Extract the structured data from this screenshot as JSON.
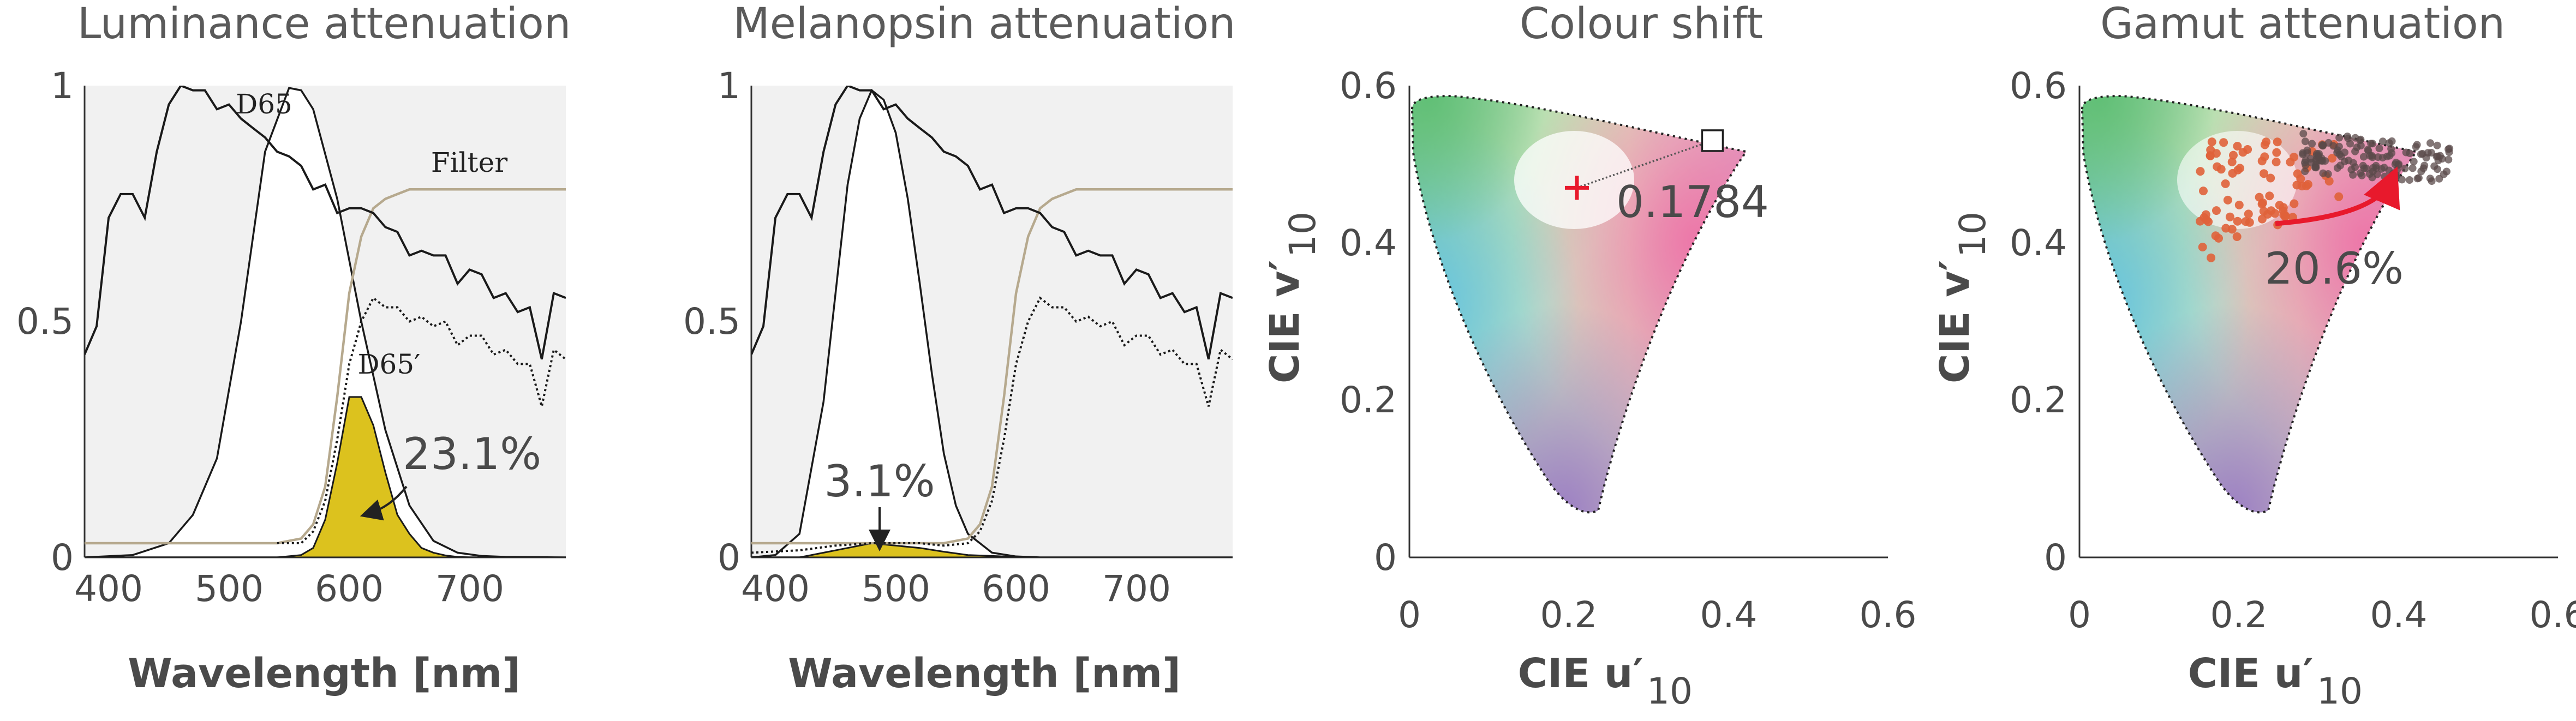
{
  "colors": {
    "filter": "#b6a98e",
    "fill": "#dcc21e",
    "arrow_red": "#e8192c",
    "marker_red": "#e8192c",
    "dots": "#e0623a",
    "dots_dark": "#5a4a4a"
  },
  "chart_data": [
    {
      "type": "line",
      "title": "Luminance attenuation",
      "xlabel": "Wavelength [nm]",
      "xlim": [
        380,
        780
      ],
      "ylim": [
        0,
        1
      ],
      "xticks": [
        "400",
        "500",
        "600",
        "700"
      ],
      "yticks": [
        "0",
        "0.5",
        "1"
      ],
      "series": [
        {
          "name": "D65",
          "style": "solid",
          "x": [
            380,
            390,
            400,
            410,
            420,
            430,
            440,
            450,
            460,
            470,
            480,
            490,
            500,
            510,
            520,
            530,
            540,
            550,
            560,
            570,
            580,
            590,
            600,
            610,
            620,
            630,
            640,
            650,
            660,
            670,
            680,
            690,
            700,
            710,
            720,
            730,
            740,
            750,
            760,
            770,
            780
          ],
          "values": [
            0.43,
            0.49,
            0.72,
            0.77,
            0.77,
            0.72,
            0.86,
            0.96,
            1.0,
            0.99,
            0.99,
            0.95,
            0.96,
            0.93,
            0.91,
            0.89,
            0.86,
            0.85,
            0.83,
            0.78,
            0.79,
            0.73,
            0.74,
            0.74,
            0.73,
            0.7,
            0.69,
            0.64,
            0.65,
            0.64,
            0.64,
            0.58,
            0.61,
            0.6,
            0.55,
            0.56,
            0.52,
            0.53,
            0.42,
            0.56,
            0.55
          ]
        },
        {
          "name": "",
          "style": "luminosity",
          "x": [
            380,
            420,
            450,
            470,
            490,
            510,
            530,
            550,
            560,
            570,
            590,
            610,
            630,
            650,
            670,
            690,
            710,
            730,
            780
          ],
          "values": [
            0.0,
            0.005,
            0.03,
            0.09,
            0.21,
            0.5,
            0.86,
            0.995,
            0.99,
            0.95,
            0.76,
            0.5,
            0.27,
            0.11,
            0.035,
            0.01,
            0.003,
            0.001,
            0.0
          ]
        },
        {
          "name": "Filter",
          "style": "filter",
          "x": [
            380,
            500,
            540,
            560,
            570,
            580,
            590,
            600,
            610,
            620,
            630,
            640,
            650,
            660,
            700,
            780
          ],
          "values": [
            0.03,
            0.03,
            0.03,
            0.04,
            0.07,
            0.15,
            0.34,
            0.56,
            0.68,
            0.74,
            0.76,
            0.77,
            0.78,
            0.78,
            0.78,
            0.78
          ]
        },
        {
          "name": "D65′",
          "style": "dotted",
          "x": [
            540,
            560,
            570,
            580,
            590,
            600,
            610,
            620,
            630,
            640,
            650,
            660,
            670,
            680,
            690,
            700,
            710,
            720,
            730,
            740,
            750,
            760,
            770,
            780
          ],
          "values": [
            0.03,
            0.03,
            0.055,
            0.12,
            0.25,
            0.41,
            0.5,
            0.55,
            0.53,
            0.53,
            0.5,
            0.51,
            0.49,
            0.5,
            0.45,
            0.47,
            0.47,
            0.43,
            0.44,
            0.41,
            0.41,
            0.32,
            0.44,
            0.42
          ]
        },
        {
          "name": "",
          "style": "fill",
          "x": [
            540,
            560,
            570,
            580,
            590,
            600,
            610,
            620,
            630,
            640,
            650,
            660,
            670,
            680,
            690,
            700,
            720,
            780
          ],
          "values": [
            0.0,
            0.005,
            0.02,
            0.08,
            0.2,
            0.34,
            0.34,
            0.28,
            0.18,
            0.09,
            0.05,
            0.02,
            0.01,
            0.004,
            0.001,
            0.0,
            0.0,
            0.0
          ]
        }
      ],
      "annotations": [
        {
          "text": "D65",
          "x": 537,
          "y": 0.955
        },
        {
          "text": "Filter",
          "x": 703,
          "y": 0.82
        },
        {
          "text": "D65′",
          "x": 656,
          "y": 0.45
        },
        {
          "text": "23.1%",
          "x": 670,
          "y": 0.21
        }
      ]
    },
    {
      "type": "line",
      "title": "Melanopsin attenuation",
      "xlabel": "Wavelength [nm]",
      "xlim": [
        380,
        780
      ],
      "ylim": [
        0,
        1
      ],
      "xticks": [
        "400",
        "500",
        "600",
        "700"
      ],
      "yticks": [
        "0",
        "0.5",
        "1"
      ],
      "series": [
        {
          "name": "D65",
          "style": "solid",
          "x": [
            380,
            390,
            400,
            410,
            420,
            430,
            440,
            450,
            460,
            470,
            480,
            490,
            500,
            510,
            520,
            530,
            540,
            550,
            560,
            570,
            580,
            590,
            600,
            610,
            620,
            630,
            640,
            650,
            660,
            670,
            680,
            690,
            700,
            710,
            720,
            730,
            740,
            750,
            760,
            770,
            780
          ],
          "values": [
            0.43,
            0.49,
            0.72,
            0.77,
            0.77,
            0.72,
            0.86,
            0.96,
            1.0,
            0.99,
            0.99,
            0.95,
            0.96,
            0.93,
            0.91,
            0.89,
            0.86,
            0.85,
            0.83,
            0.78,
            0.79,
            0.73,
            0.74,
            0.74,
            0.73,
            0.7,
            0.69,
            0.64,
            0.65,
            0.64,
            0.64,
            0.58,
            0.61,
            0.6,
            0.55,
            0.56,
            0.52,
            0.53,
            0.42,
            0.56,
            0.55
          ]
        },
        {
          "name": "",
          "style": "melanopsin",
          "x": [
            380,
            400,
            420,
            440,
            450,
            460,
            470,
            480,
            490,
            500,
            510,
            520,
            530,
            540,
            550,
            560,
            580,
            600,
            620,
            780
          ],
          "values": [
            0.0,
            0.005,
            0.05,
            0.33,
            0.56,
            0.79,
            0.93,
            0.99,
            0.97,
            0.9,
            0.76,
            0.58,
            0.39,
            0.22,
            0.11,
            0.05,
            0.01,
            0.002,
            0.0,
            0.0
          ]
        },
        {
          "name": "",
          "style": "filter",
          "x": [
            380,
            500,
            540,
            560,
            570,
            580,
            590,
            600,
            610,
            620,
            630,
            640,
            650,
            660,
            700,
            780
          ],
          "values": [
            0.03,
            0.03,
            0.03,
            0.04,
            0.07,
            0.15,
            0.34,
            0.56,
            0.68,
            0.74,
            0.76,
            0.77,
            0.78,
            0.78,
            0.78,
            0.78
          ]
        },
        {
          "name": "",
          "style": "dotted",
          "x": [
            380,
            420,
            450,
            480,
            500,
            520,
            540,
            560,
            570,
            580,
            590,
            600,
            610,
            620,
            630,
            640,
            650,
            660,
            670,
            680,
            690,
            700,
            710,
            720,
            730,
            740,
            750,
            760,
            770,
            780
          ],
          "values": [
            0.01,
            0.015,
            0.025,
            0.03,
            0.03,
            0.03,
            0.025,
            0.03,
            0.055,
            0.12,
            0.25,
            0.41,
            0.5,
            0.55,
            0.53,
            0.53,
            0.5,
            0.51,
            0.49,
            0.5,
            0.45,
            0.47,
            0.47,
            0.43,
            0.44,
            0.41,
            0.41,
            0.32,
            0.44,
            0.42
          ]
        },
        {
          "name": "",
          "style": "fill",
          "x": [
            380,
            420,
            440,
            460,
            480,
            500,
            520,
            540,
            560,
            580,
            600,
            620,
            780
          ],
          "values": [
            0.0,
            0.0,
            0.01,
            0.02,
            0.03,
            0.025,
            0.02,
            0.012,
            0.005,
            0.003,
            0.001,
            0.0,
            0.0
          ]
        }
      ],
      "annotations": [
        {
          "text": "3.1%",
          "x": 500,
          "y": 0.15
        }
      ]
    },
    {
      "type": "scatter",
      "title": "Colour shift",
      "xlabel": "CIE u′",
      "xlabel_sub": "10",
      "ylabel": "CIE v′",
      "ylabel_sub": "10",
      "xlim": [
        0,
        0.6
      ],
      "ylim": [
        0,
        0.6
      ],
      "xticks": [
        "0",
        "0.2",
        "0.4",
        "0.6"
      ],
      "yticks": [
        "0",
        "0.2",
        "0.4",
        "0.6"
      ],
      "points": [
        {
          "name": "white point",
          "u": 0.21,
          "v": 0.47,
          "marker": "cross"
        },
        {
          "name": "shifted",
          "u": 0.38,
          "v": 0.53,
          "marker": "square"
        }
      ],
      "annotations": [
        {
          "text": "0.1784",
          "x": 0.39,
          "y": 0.445
        }
      ]
    },
    {
      "type": "scatter",
      "title": "Gamut attenuation",
      "xlabel": "CIE u′",
      "xlabel_sub": "10",
      "ylabel": "CIE v′",
      "ylabel_sub": "10",
      "xlim": [
        0,
        0.6
      ],
      "ylim": [
        0,
        0.6
      ],
      "xticks": [
        "0",
        "0.2",
        "0.4",
        "0.6"
      ],
      "yticks": [
        "0",
        "0.2",
        "0.4",
        "0.6"
      ],
      "clusters": [
        {
          "name": "original",
          "u_range": [
            0.15,
            0.33
          ],
          "v_range": [
            0.37,
            0.53
          ]
        },
        {
          "name": "filtered",
          "u_range": [
            0.28,
            0.47
          ],
          "v_range": [
            0.49,
            0.54
          ]
        }
      ],
      "annotations": [
        {
          "text": "20.6%",
          "x": 0.33,
          "y": 0.375
        }
      ]
    }
  ]
}
